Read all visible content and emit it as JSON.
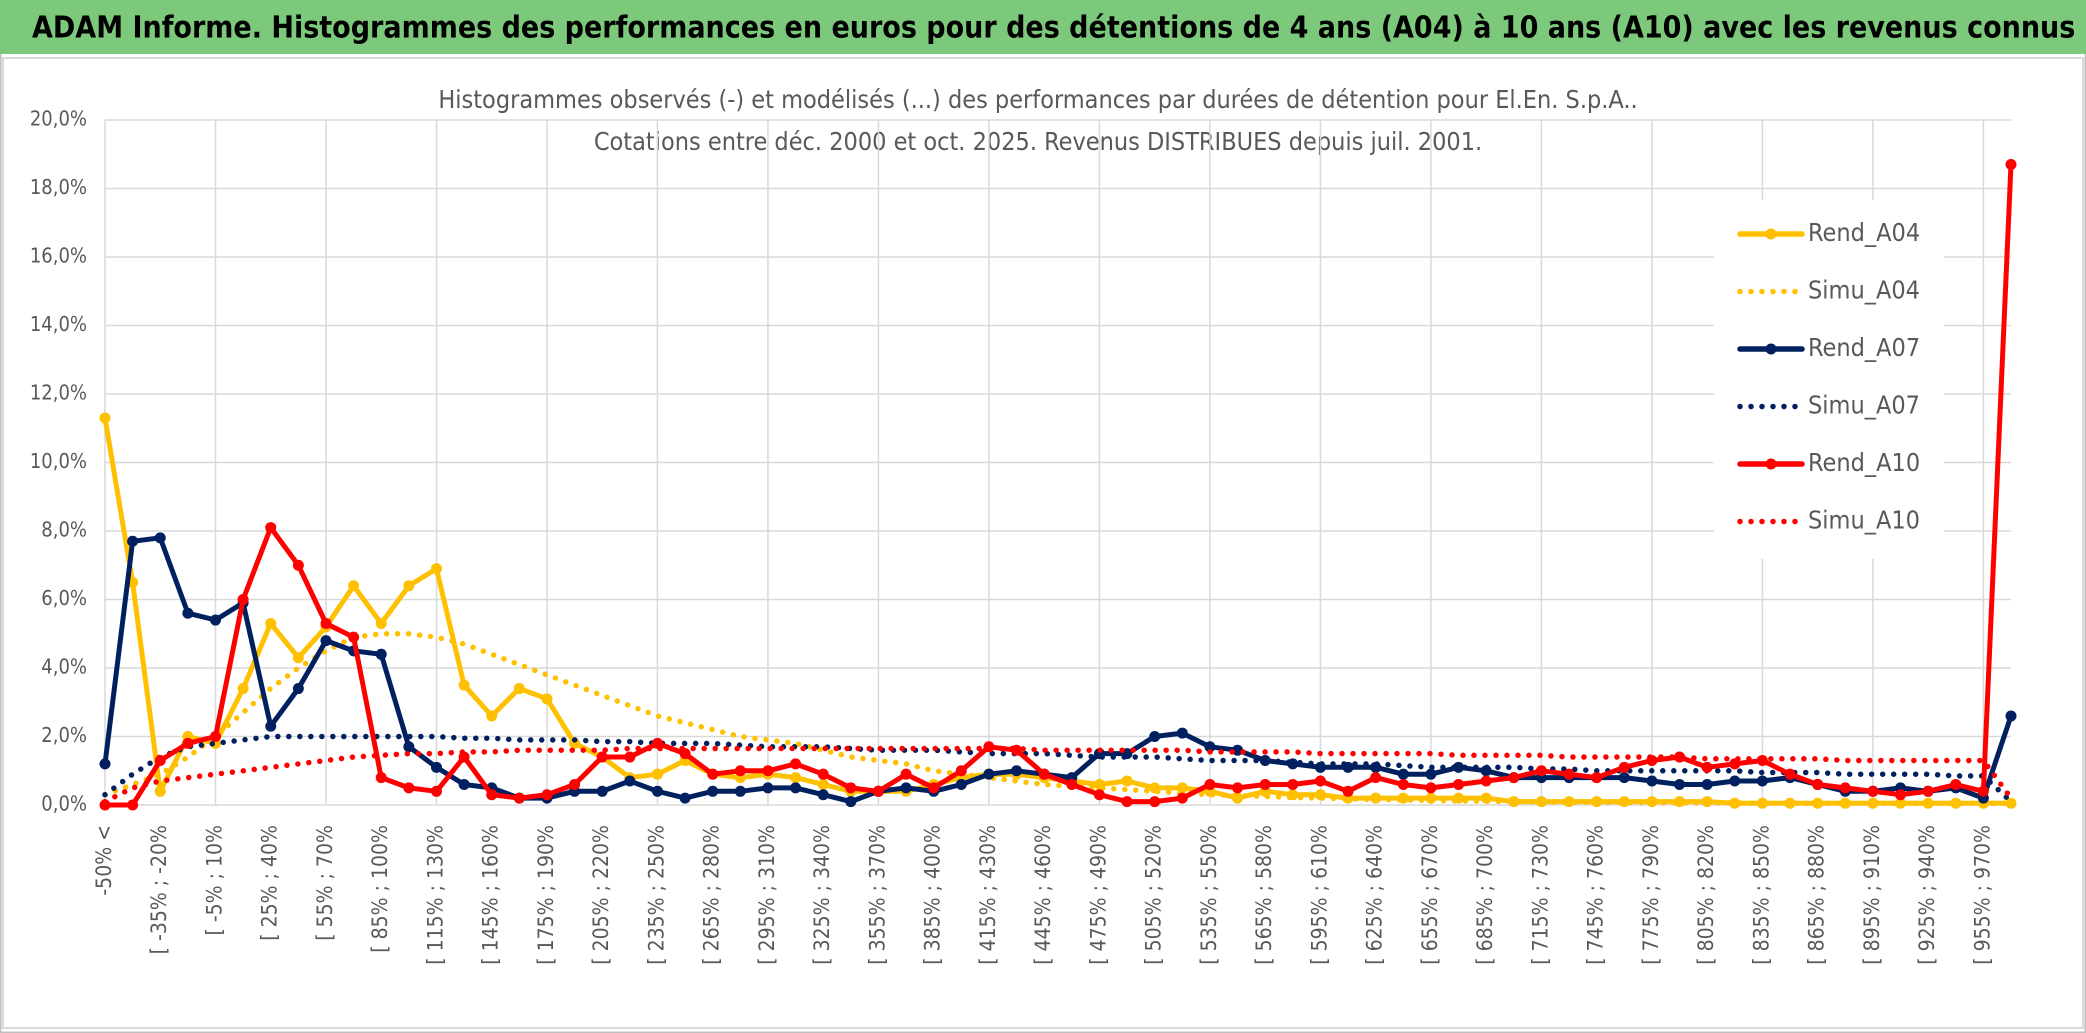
{
  "chart_data": {
    "type": "line",
    "heading": "ADAM Informe. Histogrammes des performances en euros pour des détentions de 4 ans (A04) à 10 ans (A10) avec les revenus connus distribués",
    "title": "Histogrammes observés (-) et modélisés (...) des performances par durées de détention pour El.En. S.p.A..",
    "subtitle": "Cotations entre déc. 2000 et oct. 2025. Revenus DISTRIBUES depuis juil. 2001.",
    "categories": [
      "-50% <",
      null,
      "[ -35% ; -20%",
      null,
      "[ -5% ; 10%",
      null,
      "[ 25% ; 40%",
      null,
      "[ 55% ; 70%",
      null,
      "[ 85% ; 100%",
      null,
      "[ 115% ; 130%",
      null,
      "[ 145% ; 160%",
      null,
      "[ 175% ; 190%",
      null,
      "[ 205% ; 220%",
      null,
      "[ 235% ; 250%",
      null,
      "[ 265% ; 280%",
      null,
      "[ 295% ; 310%",
      null,
      "[ 325% ; 340%",
      null,
      "[ 355% ; 370%",
      null,
      "[ 385% ; 400%",
      null,
      "[ 415% ; 430%",
      null,
      "[ 445% ; 460%",
      null,
      "[ 475% ; 490%",
      null,
      "[ 505% ; 520%",
      null,
      "[ 535% ; 550%",
      null,
      "[ 565% ; 580%",
      null,
      "[ 595% ; 610%",
      null,
      "[ 625% ; 640%",
      null,
      "[ 655% ; 670%",
      null,
      "[ 685% ; 700%",
      null,
      "[ 715% ; 730%",
      null,
      "[ 745% ; 760%",
      null,
      "[ 775% ; 790%",
      null,
      "[ 805% ; 820%",
      null,
      "[ 835% ; 850%",
      null,
      "[ 865% ; 880%",
      null,
      "[ 895% ; 910%",
      null,
      "[ 925% ; 940%",
      null,
      "[ 955% ; 970%",
      null
    ],
    "series": [
      {
        "name": "Rend_A04",
        "color": "#FFC000",
        "line_style": "solid",
        "values": [
          11.3,
          6.5,
          0.4,
          2.0,
          1.8,
          3.4,
          5.3,
          4.3,
          5.2,
          6.4,
          5.3,
          6.4,
          6.9,
          3.5,
          2.6,
          3.4,
          3.1,
          1.8,
          1.4,
          0.8,
          0.9,
          1.3,
          0.9,
          0.8,
          0.9,
          0.8,
          0.6,
          0.4,
          0.4,
          0.4,
          0.6,
          0.8,
          0.9,
          0.9,
          0.8,
          0.7,
          0.6,
          0.7,
          0.5,
          0.5,
          0.4,
          0.2,
          0.4,
          0.3,
          0.3,
          0.2,
          0.2,
          0.2,
          0.2,
          0.2,
          0.2,
          0.1,
          0.1,
          0.1,
          0.1,
          0.1,
          0.1,
          0.1,
          0.1,
          0.05,
          0.05,
          0.05,
          0.05,
          0.05,
          0.05,
          0.05,
          0.05,
          0.05,
          0.05,
          0.05
        ]
      },
      {
        "name": "Simu_A04",
        "color": "#FFC000",
        "line_style": "dotted",
        "values": [
          0.3,
          0.6,
          0.9,
          1.4,
          2.0,
          2.7,
          3.4,
          4.0,
          4.5,
          4.9,
          5.0,
          5.0,
          4.9,
          4.7,
          4.4,
          4.1,
          3.8,
          3.5,
          3.2,
          2.9,
          2.6,
          2.4,
          2.2,
          2.0,
          1.9,
          1.8,
          1.6,
          1.4,
          1.3,
          1.2,
          1.0,
          0.9,
          0.8,
          0.7,
          0.6,
          0.55,
          0.5,
          0.45,
          0.4,
          0.35,
          0.3,
          0.28,
          0.25,
          0.22,
          0.2,
          0.18,
          0.16,
          0.15,
          0.13,
          0.12,
          0.11,
          0.1,
          0.09,
          0.08,
          0.08,
          0.07,
          0.07,
          0.06,
          0.06,
          0.06,
          0.05,
          0.05,
          0.05,
          0.05,
          0.05,
          0.05,
          0.05,
          0.05,
          0.05,
          0.05
        ]
      },
      {
        "name": "Rend_A07",
        "color": "#002060",
        "line_style": "solid",
        "values": [
          1.2,
          7.7,
          7.8,
          5.6,
          5.4,
          5.9,
          2.3,
          3.4,
          4.8,
          4.5,
          4.4,
          1.7,
          1.1,
          0.6,
          0.5,
          0.2,
          0.2,
          0.4,
          0.4,
          0.7,
          0.4,
          0.2,
          0.4,
          0.4,
          0.5,
          0.5,
          0.3,
          0.1,
          0.4,
          0.5,
          0.4,
          0.6,
          0.9,
          1.0,
          0.9,
          0.8,
          1.5,
          1.5,
          2.0,
          2.1,
          1.7,
          1.6,
          1.3,
          1.2,
          1.1,
          1.1,
          1.1,
          0.9,
          0.9,
          1.1,
          1.0,
          0.8,
          0.8,
          0.8,
          0.8,
          0.8,
          0.7,
          0.6,
          0.6,
          0.7,
          0.7,
          0.8,
          0.6,
          0.4,
          0.4,
          0.5,
          0.4,
          0.5,
          0.2,
          2.6
        ]
      },
      {
        "name": "Simu_A07",
        "color": "#002060",
        "line_style": "dotted",
        "values": [
          0.3,
          0.9,
          1.4,
          1.7,
          1.8,
          1.9,
          2.0,
          2.0,
          2.0,
          2.0,
          2.0,
          2.0,
          2.0,
          1.95,
          1.95,
          1.9,
          1.9,
          1.9,
          1.85,
          1.85,
          1.8,
          1.8,
          1.8,
          1.75,
          1.7,
          1.7,
          1.7,
          1.65,
          1.6,
          1.6,
          1.6,
          1.55,
          1.5,
          1.5,
          1.5,
          1.45,
          1.4,
          1.4,
          1.4,
          1.35,
          1.3,
          1.3,
          1.3,
          1.25,
          1.2,
          1.2,
          1.2,
          1.15,
          1.1,
          1.1,
          1.1,
          1.1,
          1.05,
          1.05,
          1.0,
          1.0,
          1.0,
          1.0,
          1.0,
          1.0,
          0.95,
          0.95,
          0.95,
          0.9,
          0.9,
          0.9,
          0.9,
          0.85,
          0.85,
          0.1
        ]
      },
      {
        "name": "Rend_A10",
        "color": "#FF0000",
        "line_style": "solid",
        "values": [
          0,
          0,
          1.3,
          1.8,
          2.0,
          6.0,
          8.1,
          7.0,
          5.3,
          4.9,
          0.8,
          0.5,
          0.4,
          1.4,
          0.3,
          0.2,
          0.3,
          0.6,
          1.4,
          1.4,
          1.8,
          1.5,
          0.9,
          1.0,
          1.0,
          1.2,
          0.9,
          0.5,
          0.4,
          0.9,
          0.5,
          1.0,
          1.7,
          1.6,
          0.9,
          0.6,
          0.3,
          0.1,
          0.1,
          0.2,
          0.6,
          0.5,
          0.6,
          0.6,
          0.7,
          0.4,
          0.8,
          0.6,
          0.5,
          0.6,
          0.7,
          0.8,
          1.0,
          0.9,
          0.8,
          1.1,
          1.3,
          1.4,
          1.1,
          1.2,
          1.3,
          0.9,
          0.6,
          0.5,
          0.4,
          0.3,
          0.4,
          0.6,
          0.4,
          18.7
        ]
      },
      {
        "name": "Simu_A10",
        "color": "#FF0000",
        "line_style": "dotted",
        "values": [
          0.1,
          0.5,
          0.7,
          0.8,
          0.9,
          1.0,
          1.1,
          1.2,
          1.3,
          1.4,
          1.45,
          1.5,
          1.5,
          1.55,
          1.55,
          1.6,
          1.6,
          1.6,
          1.6,
          1.65,
          1.65,
          1.65,
          1.65,
          1.65,
          1.65,
          1.65,
          1.65,
          1.65,
          1.65,
          1.65,
          1.65,
          1.65,
          1.65,
          1.65,
          1.6,
          1.6,
          1.6,
          1.6,
          1.6,
          1.6,
          1.55,
          1.55,
          1.55,
          1.55,
          1.5,
          1.5,
          1.5,
          1.5,
          1.5,
          1.45,
          1.45,
          1.45,
          1.45,
          1.4,
          1.4,
          1.4,
          1.4,
          1.4,
          1.35,
          1.35,
          1.35,
          1.35,
          1.35,
          1.3,
          1.3,
          1.3,
          1.3,
          1.3,
          1.3,
          0.2
        ]
      }
    ],
    "ylim": [
      0,
      20
    ],
    "yticks": [
      {
        "value": 0,
        "label": "0,0%"
      },
      {
        "value": 2,
        "label": "2,0%"
      },
      {
        "value": 4,
        "label": "4,0%"
      },
      {
        "value": 6,
        "label": "6,0%"
      },
      {
        "value": 8,
        "label": "8,0%"
      },
      {
        "value": 10,
        "label": "10,0%"
      },
      {
        "value": 12,
        "label": "12,0%"
      },
      {
        "value": 14,
        "label": "14,0%"
      },
      {
        "value": 16,
        "label": "16,0%"
      },
      {
        "value": 18,
        "label": "18,0%"
      },
      {
        "value": 20,
        "label": "20,0%"
      }
    ],
    "grid": true,
    "legend": "right"
  }
}
